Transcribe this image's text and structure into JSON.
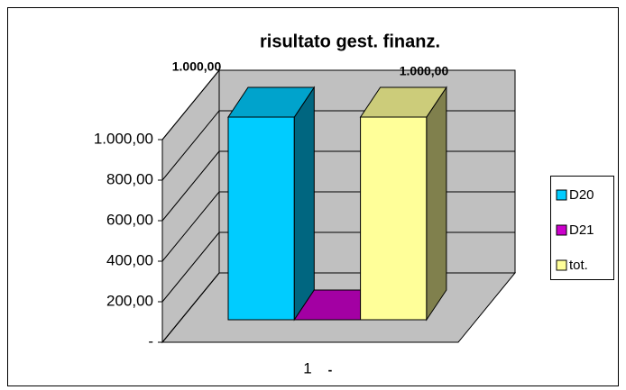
{
  "chart_data": {
    "type": "bar",
    "title": "risultato gest. finanz.",
    "categories": [
      "1"
    ],
    "series": [
      {
        "name": "D20",
        "color": "#00ccff",
        "values": [
          1000
        ],
        "value_labels": [
          "1.000,00"
        ]
      },
      {
        "name": "D21",
        "color": "#cc00cc",
        "values": [
          0
        ],
        "value_labels": [
          "-"
        ]
      },
      {
        "name": "tot.",
        "color": "#ffff99",
        "values": [
          1000
        ],
        "value_labels": [
          "1.000,00"
        ]
      }
    ],
    "ylim": [
      0,
      1000
    ],
    "yticks": [
      {
        "value": 0,
        "label": "-"
      },
      {
        "value": 200,
        "label": "200,00"
      },
      {
        "value": 400,
        "label": "400,00"
      },
      {
        "value": 600,
        "label": "600,00"
      },
      {
        "value": 800,
        "label": "800,00"
      },
      {
        "value": 1000,
        "label": "1.000,00"
      }
    ],
    "grid": true,
    "legend": "right"
  }
}
